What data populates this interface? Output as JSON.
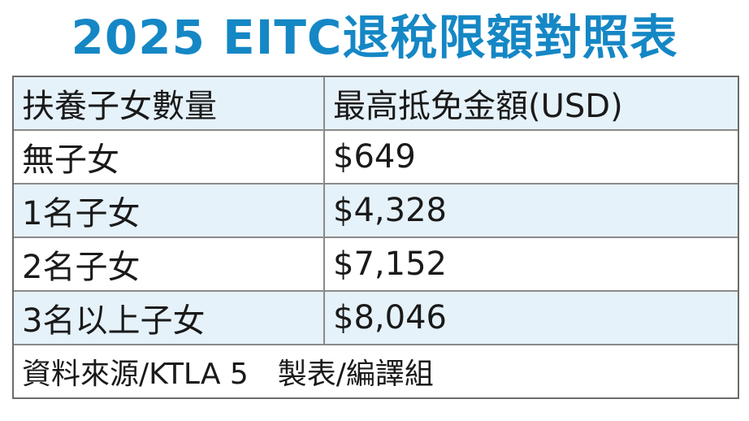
{
  "title": "2025 EITC退稅限額對照表",
  "table": {
    "headers": [
      "扶養子女數量",
      "最高抵免金額(USD)"
    ],
    "rows": [
      [
        "無子女",
        "$649"
      ],
      [
        "1名子女",
        "$4,328"
      ],
      [
        "2名子女",
        "$7,152"
      ],
      [
        "3名以上子女",
        "$8,046"
      ]
    ],
    "footer": "資料來源/KTLA 5　製表/編譯組"
  },
  "colors": {
    "title": "#1587c5",
    "stripe": "#e6f2fa",
    "border": "#8a8a8a"
  }
}
